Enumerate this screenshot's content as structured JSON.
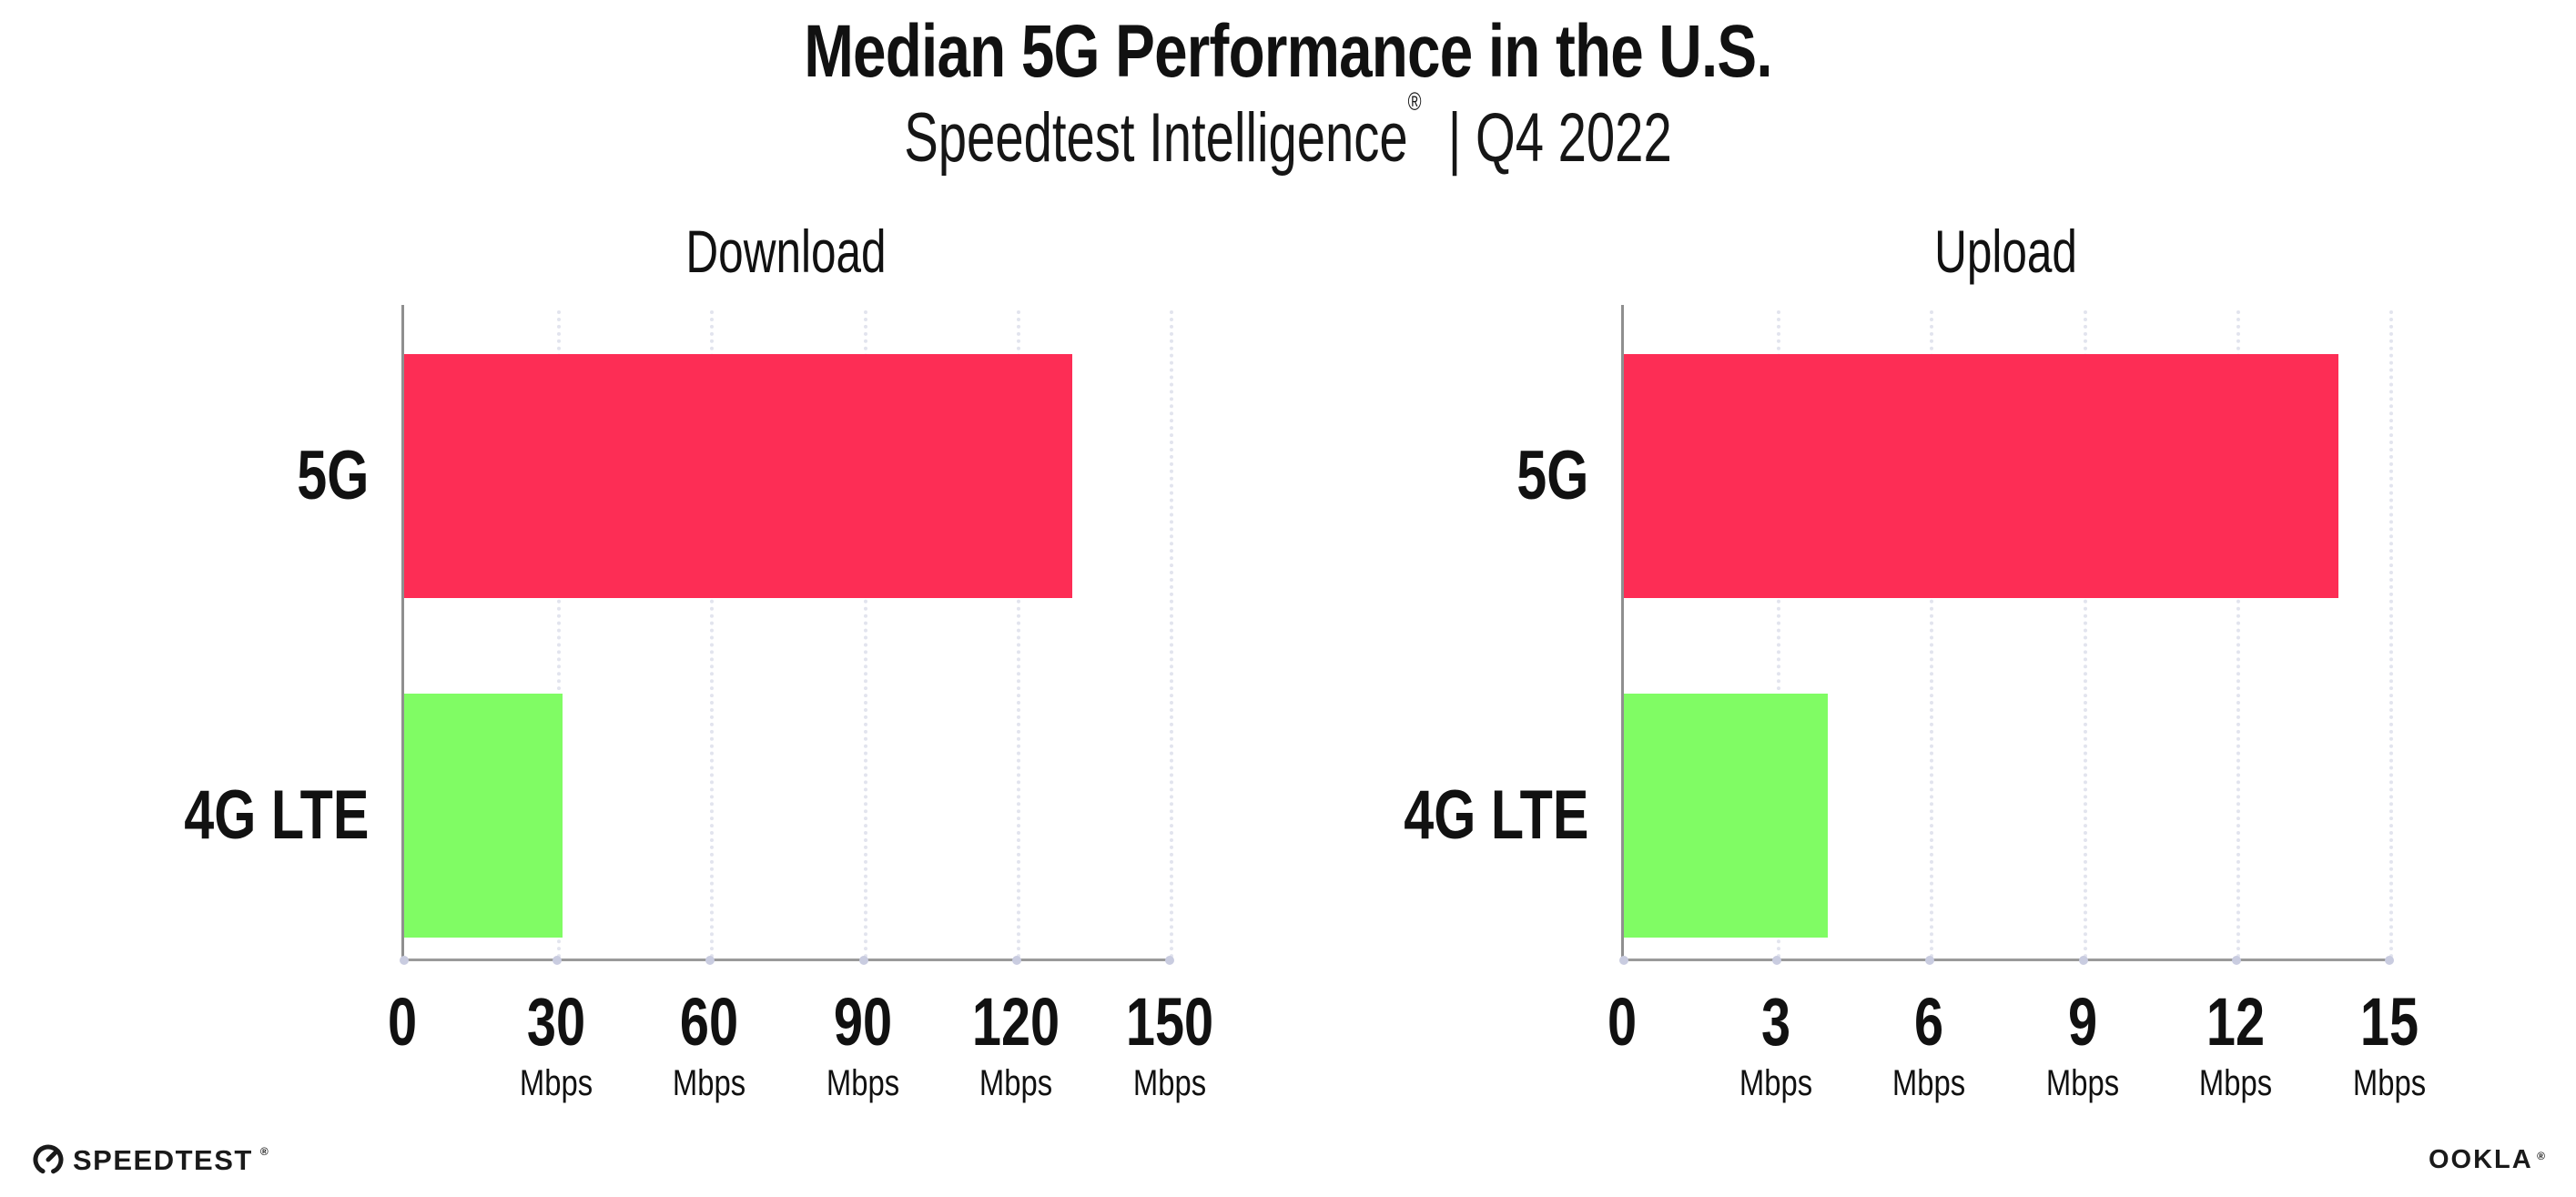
{
  "header": {
    "title": "Median 5G Performance in the U.S.",
    "subtitle_brand": "Speedtest Intelligence",
    "subtitle_reg": "®",
    "subtitle_rest": "| Q4 2022"
  },
  "footer": {
    "speedtest_label": "SPEEDTEST",
    "speedtest_mark": "®",
    "ookla_label": "OOKLA",
    "ookla_mark": "®"
  },
  "colors": {
    "bar_5g": "#FD2D55",
    "bar_4g_lte": "#80FC64",
    "axis": "#8f8f8f",
    "gridline": "#e2e4ee",
    "tick_dot": "#c9cce0",
    "text": "#111111"
  },
  "chart_data": [
    {
      "type": "bar",
      "orientation": "horizontal",
      "title": "Download",
      "categories": [
        "5G",
        "4G LTE"
      ],
      "values": [
        131,
        31
      ],
      "unit": "Mbps",
      "xlim": [
        0,
        150
      ],
      "ticks": [
        0,
        30,
        60,
        90,
        120,
        150
      ],
      "bar_colors": [
        "#FD2D55",
        "#80FC64"
      ],
      "grid": "dotted-vertical",
      "legend": "none"
    },
    {
      "type": "bar",
      "orientation": "horizontal",
      "title": "Upload",
      "categories": [
        "5G",
        "4G LTE"
      ],
      "values": [
        14,
        4
      ],
      "unit": "Mbps",
      "xlim": [
        0,
        15
      ],
      "ticks": [
        0,
        3,
        6,
        9,
        12,
        15
      ],
      "bar_colors": [
        "#FD2D55",
        "#80FC64"
      ],
      "grid": "dotted-vertical",
      "legend": "none"
    }
  ]
}
